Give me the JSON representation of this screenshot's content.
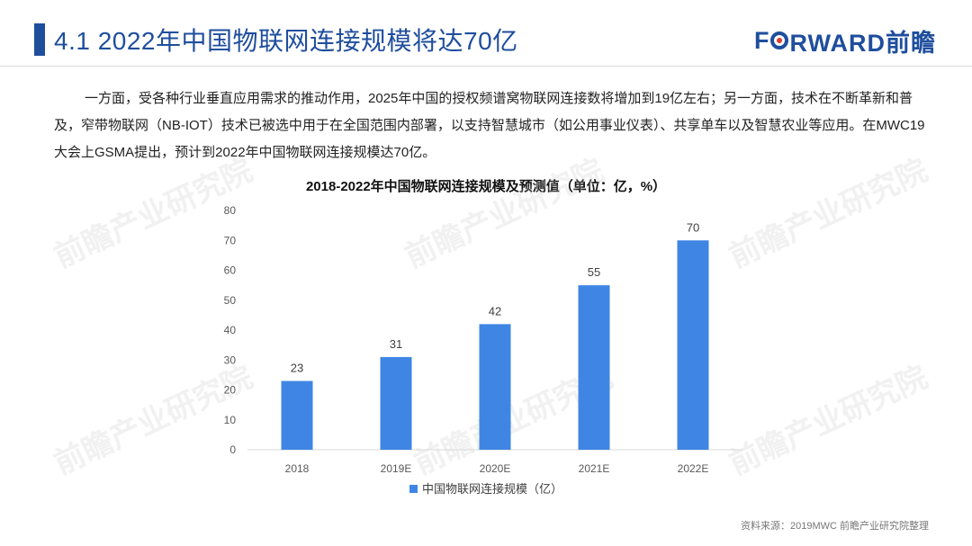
{
  "header": {
    "title": "4.1  2022年中国物联网连接规模将达70亿",
    "logo_text_prefix": "F",
    "logo_text_suffix": "RWARD前瞻"
  },
  "body_text": "一方面，受各种行业垂直应用需求的推动作用，2025年中国的授权频谱窝物联网连接数将增加到19亿左右；另一方面，技术在不断革新和普及，窄带物联网（NB-IOT）技术已被选中用于在全国范围内部署，以支持智慧城市（如公用事业仪表）、共享单车以及智慧农业等应用。在MWC19 大会上GSMA提出，预计到2022年中国物联网连接规模达70亿。",
  "chart_data": {
    "type": "bar",
    "title": "2018-2022年中国物联网连接规模及预测值（单位：亿，%）",
    "categories": [
      "2018",
      "2019E",
      "2020E",
      "2021E",
      "2022E"
    ],
    "series": [
      {
        "name": "中国物联网连接规模（亿）",
        "values": [
          23,
          31,
          42,
          55,
          70
        ]
      }
    ],
    "ylim": [
      0,
      80
    ],
    "yticks": [
      0,
      10,
      20,
      30,
      40,
      50,
      60,
      70,
      80
    ],
    "grid": false,
    "legend_position": "bottom-center",
    "bar_color": "#3f86e4"
  },
  "source": "资料来源：2019MWC 前瞻产业研究院整理",
  "watermark": "前瞻产业研究院"
}
